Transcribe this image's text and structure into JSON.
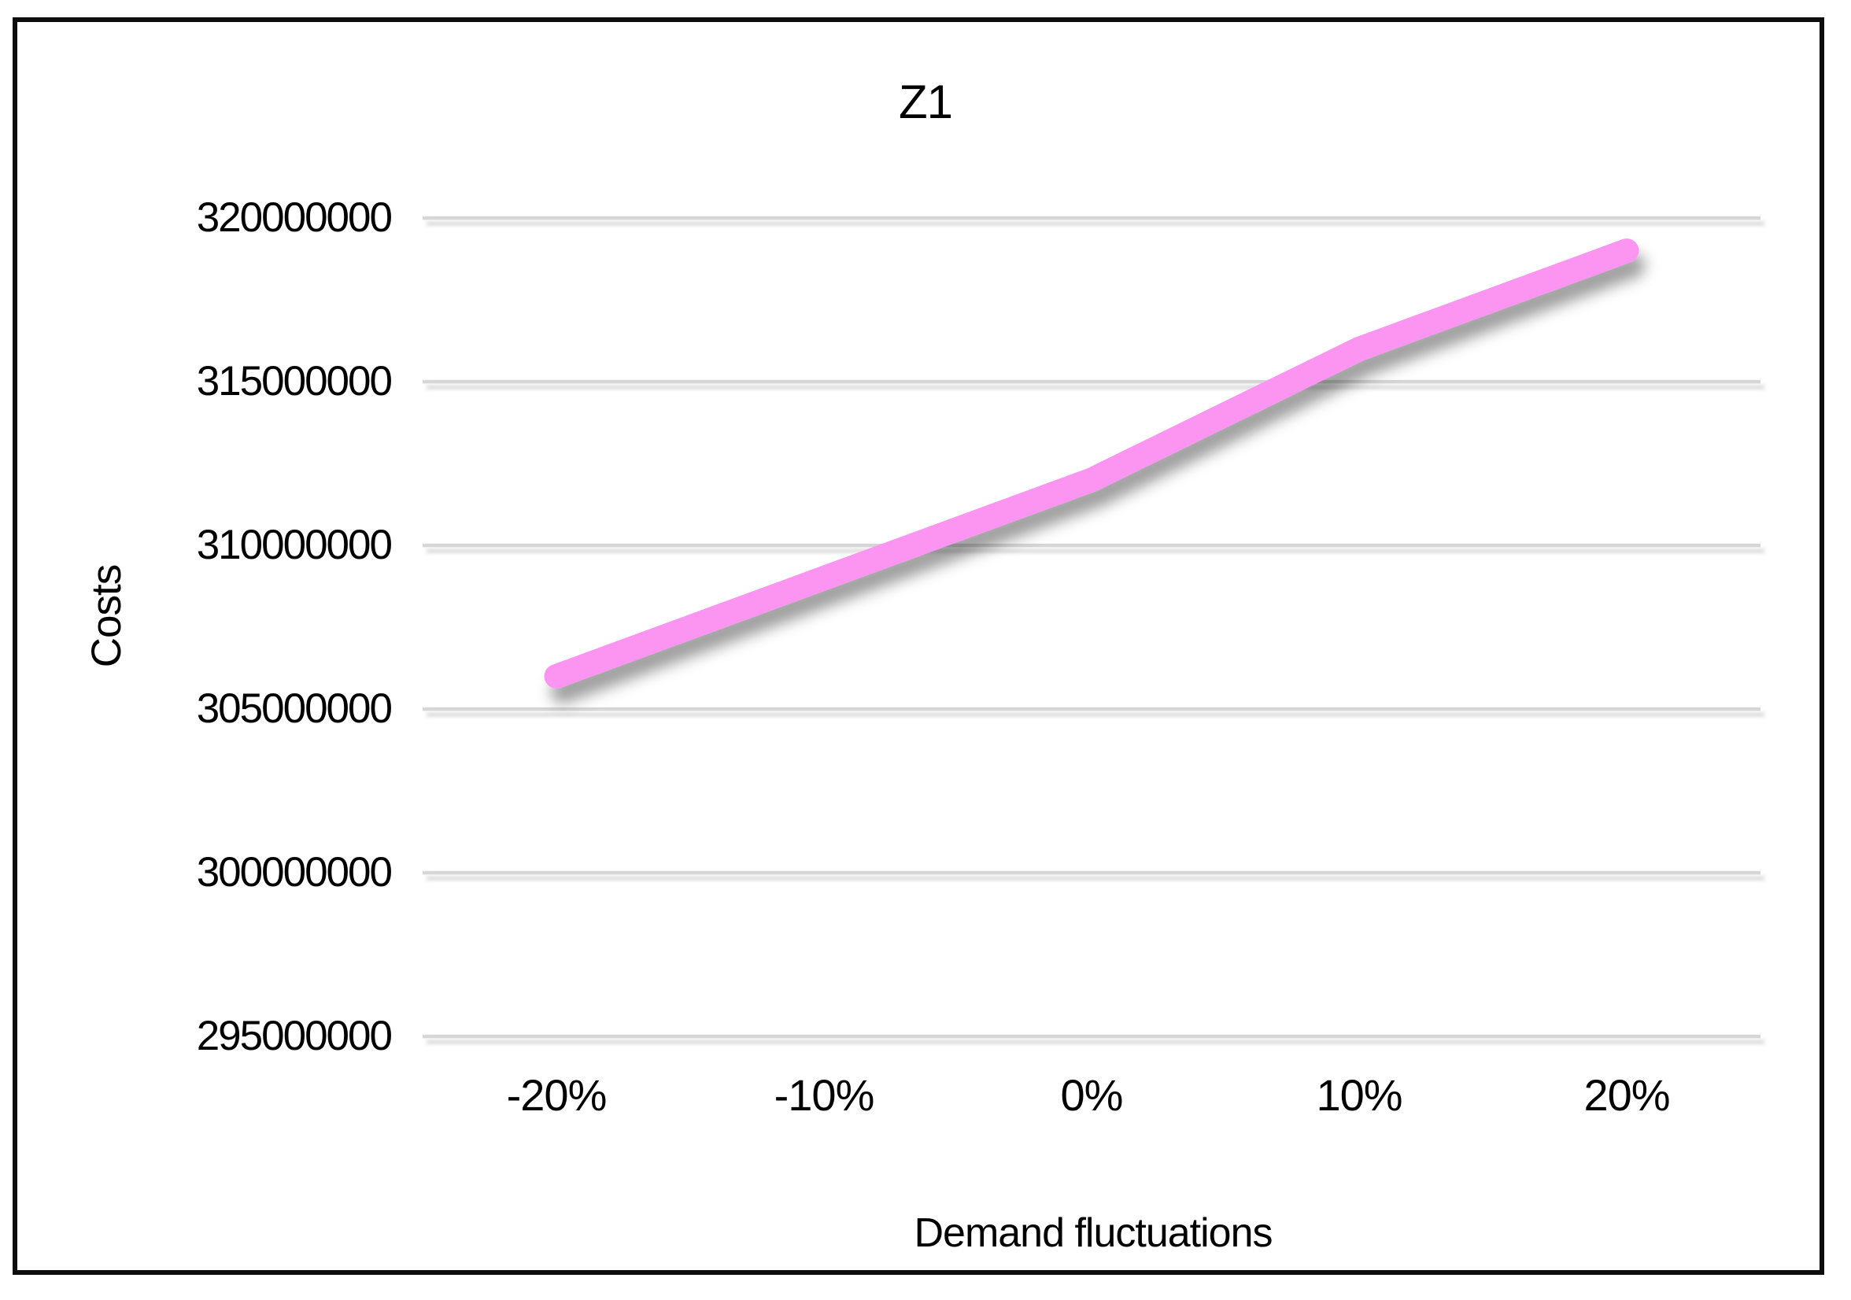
{
  "chart_data": {
    "type": "line",
    "title": "Z1",
    "categories": [
      "-20%",
      "-10%",
      "0%",
      "10%",
      "20%"
    ],
    "series": [
      {
        "name": "Z1",
        "values": [
          306000000,
          309000000,
          312000000,
          316000000,
          319000000
        ]
      }
    ],
    "xlabel": "Demand fluctuations",
    "ylabel": "Costs",
    "ylim": [
      295000000,
      320000000
    ],
    "ytick_step": 5000000,
    "yticks": [
      "295000000",
      "300000000",
      "305000000",
      "310000000",
      "315000000",
      "320000000"
    ],
    "grid": "horizontal-major",
    "legend": "none",
    "line_color": "#fc95f2",
    "gridline_color": "#d6d6d6",
    "text_color": "#000000",
    "frame_color": "#0d0d0d",
    "background_color": "#ffffff"
  }
}
